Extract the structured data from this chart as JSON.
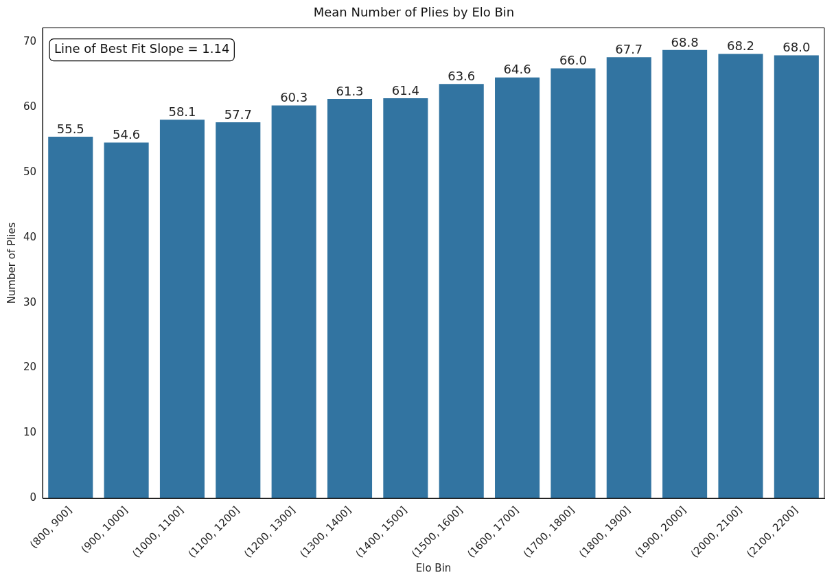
{
  "chart_data": {
    "type": "bar",
    "title": "Mean Number of Plies by Elo Bin",
    "xlabel": "Elo Bin",
    "ylabel": "Number of Plies",
    "categories": [
      "(800, 900]",
      "(900, 1000]",
      "(1000, 1100]",
      "(1100, 1200]",
      "(1200, 1300]",
      "(1300, 1400]",
      "(1400, 1500]",
      "(1500, 1600]",
      "(1600, 1700]",
      "(1700, 1800]",
      "(1800, 1900]",
      "(1900, 2000]",
      "(2000, 2100]",
      "(2100, 2200]"
    ],
    "values": [
      55.5,
      54.6,
      58.1,
      57.7,
      60.3,
      61.3,
      61.4,
      63.6,
      64.6,
      66.0,
      67.7,
      68.8,
      68.2,
      68.0
    ],
    "color": "#3274a1",
    "ylim": [
      0,
      72.2
    ],
    "yticks": [
      0,
      10,
      20,
      30,
      40,
      50,
      60,
      70
    ],
    "grid": false,
    "legend": false,
    "value_labels": [
      "55.5",
      "54.6",
      "58.1",
      "57.7",
      "60.3",
      "61.3",
      "61.4",
      "63.6",
      "64.6",
      "66.0",
      "67.7",
      "68.8",
      "68.2",
      "68.0"
    ],
    "annotations": [
      "Line of Best Fit Slope = 1.14"
    ]
  }
}
